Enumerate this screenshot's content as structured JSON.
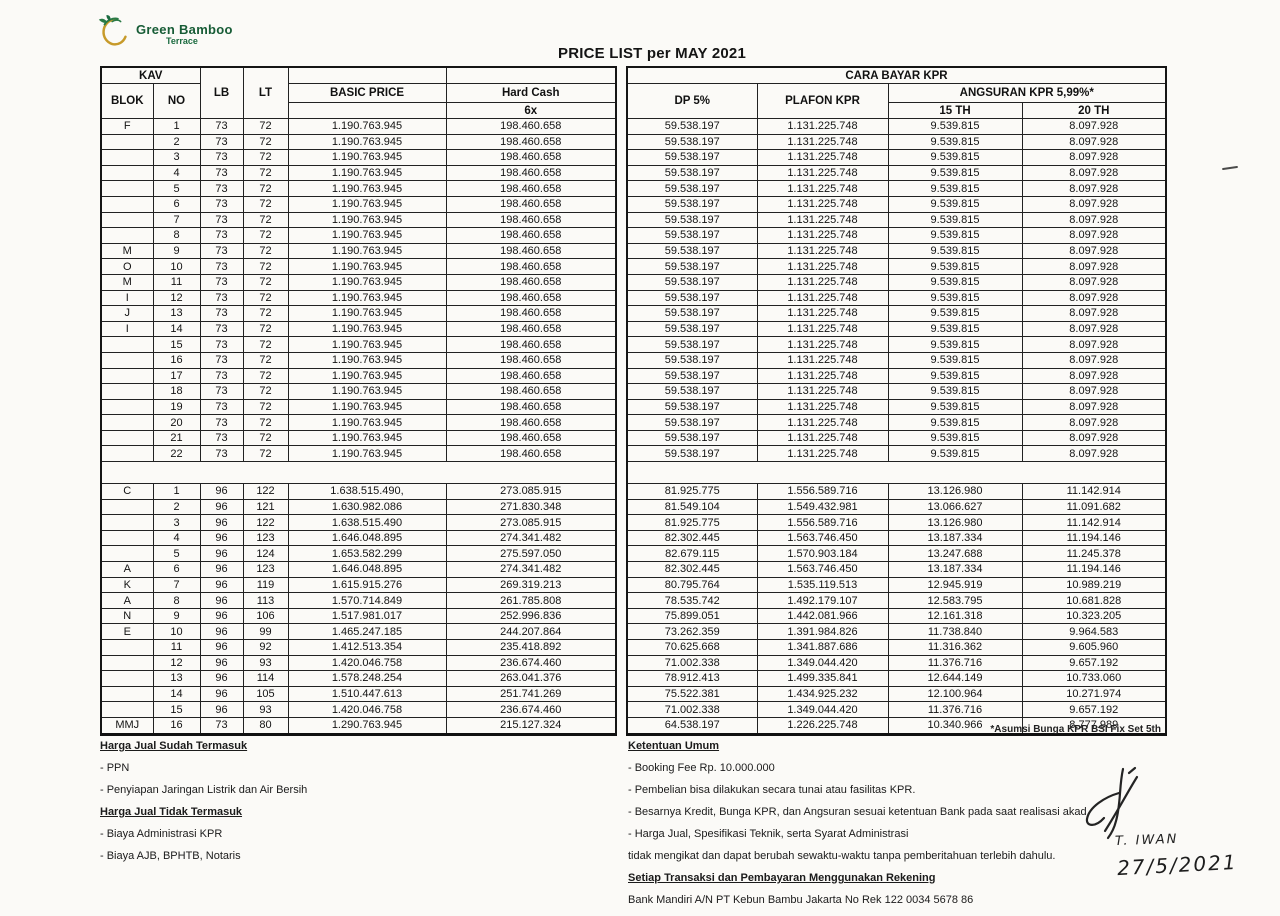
{
  "logo": {
    "line1": "Green Bamboo",
    "line2": "Terrace"
  },
  "title": "PRICE LIST per MAY 2021",
  "table": {
    "header": {
      "kav": "KAV",
      "blok": "BLOK",
      "no": "NO",
      "lb": "LB",
      "lt": "LT",
      "basic_price": "BASIC PRICE",
      "hard_cash": "Hard Cash",
      "hard_cash_sub": "6x",
      "cara_bayar": "CARA BAYAR KPR",
      "dp": "DP 5%",
      "plafon": "PLAFON KPR",
      "angsuran": "ANGSURAN KPR 5,99%*",
      "th15": "15 TH",
      "th20": "20 TH"
    },
    "sections": [
      {
        "rows": [
          [
            "F",
            "1",
            "73",
            "72",
            "1.190.763.945",
            "198.460.658",
            "59.538.197",
            "1.131.225.748",
            "9.539.815",
            "8.097.928"
          ],
          [
            "",
            "2",
            "73",
            "72",
            "1.190.763.945",
            "198.460.658",
            "59.538.197",
            "1.131.225.748",
            "9.539.815",
            "8.097.928"
          ],
          [
            "",
            "3",
            "73",
            "72",
            "1.190.763.945",
            "198.460.658",
            "59.538.197",
            "1.131.225.748",
            "9.539.815",
            "8.097.928"
          ],
          [
            "",
            "4",
            "73",
            "72",
            "1.190.763.945",
            "198.460.658",
            "59.538.197",
            "1.131.225.748",
            "9.539.815",
            "8.097.928"
          ],
          [
            "",
            "5",
            "73",
            "72",
            "1.190.763.945",
            "198.460.658",
            "59.538.197",
            "1.131.225.748",
            "9.539.815",
            "8.097.928"
          ],
          [
            "",
            "6",
            "73",
            "72",
            "1.190.763.945",
            "198.460.658",
            "59.538.197",
            "1.131.225.748",
            "9.539.815",
            "8.097.928"
          ],
          [
            "",
            "7",
            "73",
            "72",
            "1.190.763.945",
            "198.460.658",
            "59.538.197",
            "1.131.225.748",
            "9.539.815",
            "8.097.928"
          ],
          [
            "",
            "8",
            "73",
            "72",
            "1.190.763.945",
            "198.460.658",
            "59.538.197",
            "1.131.225.748",
            "9.539.815",
            "8.097.928"
          ],
          [
            "M",
            "9",
            "73",
            "72",
            "1.190.763.945",
            "198.460.658",
            "59.538.197",
            "1.131.225.748",
            "9.539.815",
            "8.097.928"
          ],
          [
            "O",
            "10",
            "73",
            "72",
            "1.190.763.945",
            "198.460.658",
            "59.538.197",
            "1.131.225.748",
            "9.539.815",
            "8.097.928"
          ],
          [
            "M",
            "11",
            "73",
            "72",
            "1.190.763.945",
            "198.460.658",
            "59.538.197",
            "1.131.225.748",
            "9.539.815",
            "8.097.928"
          ],
          [
            "I",
            "12",
            "73",
            "72",
            "1.190.763.945",
            "198.460.658",
            "59.538.197",
            "1.131.225.748",
            "9.539.815",
            "8.097.928"
          ],
          [
            "J",
            "13",
            "73",
            "72",
            "1.190.763.945",
            "198.460.658",
            "59.538.197",
            "1.131.225.748",
            "9.539.815",
            "8.097.928"
          ],
          [
            "I",
            "14",
            "73",
            "72",
            "1.190.763.945",
            "198.460.658",
            "59.538.197",
            "1.131.225.748",
            "9.539.815",
            "8.097.928"
          ],
          [
            "",
            "15",
            "73",
            "72",
            "1.190.763.945",
            "198.460.658",
            "59.538.197",
            "1.131.225.748",
            "9.539.815",
            "8.097.928"
          ],
          [
            "",
            "16",
            "73",
            "72",
            "1.190.763.945",
            "198.460.658",
            "59.538.197",
            "1.131.225.748",
            "9.539.815",
            "8.097.928"
          ],
          [
            "",
            "17",
            "73",
            "72",
            "1.190.763.945",
            "198.460.658",
            "59.538.197",
            "1.131.225.748",
            "9.539.815",
            "8.097.928"
          ],
          [
            "",
            "18",
            "73",
            "72",
            "1.190.763.945",
            "198.460.658",
            "59.538.197",
            "1.131.225.748",
            "9.539.815",
            "8.097.928"
          ],
          [
            "",
            "19",
            "73",
            "72",
            "1.190.763.945",
            "198.460.658",
            "59.538.197",
            "1.131.225.748",
            "9.539.815",
            "8.097.928"
          ],
          [
            "",
            "20",
            "73",
            "72",
            "1.190.763.945",
            "198.460.658",
            "59.538.197",
            "1.131.225.748",
            "9.539.815",
            "8.097.928"
          ],
          [
            "",
            "21",
            "73",
            "72",
            "1.190.763.945",
            "198.460.658",
            "59.538.197",
            "1.131.225.748",
            "9.539.815",
            "8.097.928"
          ],
          [
            "",
            "22",
            "73",
            "72",
            "1.190.763.945",
            "198.460.658",
            "59.538.197",
            "1.131.225.748",
            "9.539.815",
            "8.097.928"
          ]
        ]
      },
      {
        "rows": [
          [
            "C",
            "1",
            "96",
            "122",
            "1.638.515.490,",
            "273.085.915",
            "81.925.775",
            "1.556.589.716",
            "13.126.980",
            "11.142.914"
          ],
          [
            "",
            "2",
            "96",
            "121",
            "1.630.982.086",
            "271.830.348",
            "81.549.104",
            "1.549.432.981",
            "13.066.627",
            "11.091.682"
          ],
          [
            "",
            "3",
            "96",
            "122",
            "1.638.515.490",
            "273.085.915",
            "81.925.775",
            "1.556.589.716",
            "13.126.980",
            "11.142.914"
          ],
          [
            "",
            "4",
            "96",
            "123",
            "1.646.048.895",
            "274.341.482",
            "82.302.445",
            "1.563.746.450",
            "13.187.334",
            "11.194.146"
          ],
          [
            "",
            "5",
            "96",
            "124",
            "1.653.582.299",
            "275.597.050",
            "82.679.115",
            "1.570.903.184",
            "13.247.688",
            "11.245.378"
          ],
          [
            "A",
            "6",
            "96",
            "123",
            "1.646.048.895",
            "274.341.482",
            "82.302.445",
            "1.563.746.450",
            "13.187.334",
            "11.194.146"
          ],
          [
            "K",
            "7",
            "96",
            "119",
            "1.615.915.276",
            "269.319.213",
            "80.795.764",
            "1.535.119.513",
            "12.945.919",
            "10.989.219"
          ],
          [
            "A",
            "8",
            "96",
            "113",
            "1.570.714.849",
            "261.785.808",
            "78.535.742",
            "1.492.179.107",
            "12.583.795",
            "10.681.828"
          ],
          [
            "N",
            "9",
            "96",
            "106",
            "1.517.981.017",
            "252.996.836",
            "75.899.051",
            "1.442.081.966",
            "12.161.318",
            "10.323.205"
          ],
          [
            "E",
            "10",
            "96",
            "99",
            "1.465.247.185",
            "244.207.864",
            "73.262.359",
            "1.391.984.826",
            "11.738.840",
            "9.964.583"
          ],
          [
            "",
            "11",
            "96",
            "92",
            "1.412.513.354",
            "235.418.892",
            "70.625.668",
            "1.341.887.686",
            "11.316.362",
            "9.605.960"
          ],
          [
            "",
            "12",
            "96",
            "93",
            "1.420.046.758",
            "236.674.460",
            "71.002.338",
            "1.349.044.420",
            "11.376.716",
            "9.657.192"
          ],
          [
            "",
            "13",
            "96",
            "114",
            "1.578.248.254",
            "263.041.376",
            "78.912.413",
            "1.499.335.841",
            "12.644.149",
            "10.733.060"
          ],
          [
            "",
            "14",
            "96",
            "105",
            "1.510.447.613",
            "251.741.269",
            "75.522.381",
            "1.434.925.232",
            "12.100.964",
            "10.271.974"
          ],
          [
            "",
            "15",
            "96",
            "93",
            "1.420.046.758",
            "236.674.460",
            "71.002.338",
            "1.349.044.420",
            "11.376.716",
            "9.657.192"
          ],
          [
            "MMJ",
            "16",
            "73",
            "80",
            "1.290.763.945",
            "215.127.324",
            "64.538.197",
            "1.226.225.748",
            "10.340.966",
            "8.777.989"
          ]
        ]
      }
    ]
  },
  "footnote": "*Asumsi Bunga KPR BSI Fix Set 5th",
  "notes_left": {
    "heading1": "Harga Jual Sudah Termasuk",
    "items1": [
      "- PPN",
      "- Penyiapan Jaringan Listrik dan Air Bersih"
    ],
    "heading2": "Harga Jual Tidak Termasuk",
    "items2": [
      "- Biaya Administrasi KPR",
      "- Biaya AJB, BPHTB, Notaris"
    ]
  },
  "notes_right": {
    "heading": "Ketentuan Umum",
    "items": [
      "- Booking Fee Rp. 10.000.000",
      "- Pembelian bisa dilakukan secara tunai atau fasilitas KPR.",
      "- Besarnya Kredit, Bunga KPR, dan Angsuran sesuai ketentuan Bank pada saat realisasi akad.",
      "- Harga Jual, Spesifikasi Teknik, serta Syarat Administrasi",
      "tidak mengikat dan dapat berubah sewaktu-waktu tanpa pemberitahuan terlebih dahulu."
    ],
    "heading2": "Setiap Transaksi dan Pembayaran Menggunakan Rekening",
    "bank_line": "Bank Mandiri A/N PT Kebun Bambu Jakarta No Rek 122 0034 5678 86"
  },
  "signature": {
    "name": "T. IWAN",
    "date": "27/5/2021"
  },
  "colors": {
    "logo_green": "#175c36",
    "logo_gold": "#c79a2a",
    "ink": "#1b1b1b"
  }
}
